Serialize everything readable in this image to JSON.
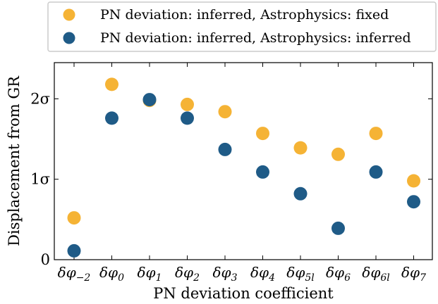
{
  "chart_data": {
    "type": "scatter",
    "xlabel": "PN deviation coefficient",
    "ylabel": "Displacement from GR",
    "categories": [
      {
        "base": "δφ",
        "sub": "−2"
      },
      {
        "base": "δφ",
        "sub": "0"
      },
      {
        "base": "δφ",
        "sub": "1"
      },
      {
        "base": "δφ",
        "sub": "2"
      },
      {
        "base": "δφ",
        "sub": "3"
      },
      {
        "base": "δφ",
        "sub": "4"
      },
      {
        "base": "δφ",
        "sub": "5l"
      },
      {
        "base": "δφ",
        "sub": "6"
      },
      {
        "base": "δφ",
        "sub": "6l"
      },
      {
        "base": "δφ",
        "sub": "7"
      }
    ],
    "yticks": [
      {
        "value": 0,
        "label": "0"
      },
      {
        "value": 1,
        "label": "1σ"
      },
      {
        "value": 2,
        "label": "2σ"
      }
    ],
    "ylim": [
      0,
      2.45
    ],
    "grid": false,
    "legend_position": "top-right, outside above plot",
    "series": [
      {
        "name": "PN deviation: inferred, Astrophysics: fixed",
        "color": "#f5b335",
        "values": [
          0.52,
          2.18,
          1.98,
          1.93,
          1.84,
          1.57,
          1.39,
          1.31,
          1.57,
          0.98
        ]
      },
      {
        "name": "PN deviation: inferred, Astrophysics: inferred",
        "color": "#1f5b87",
        "values": [
          0.11,
          1.76,
          1.99,
          1.76,
          1.37,
          1.09,
          0.82,
          0.39,
          1.09,
          0.72
        ]
      }
    ]
  }
}
